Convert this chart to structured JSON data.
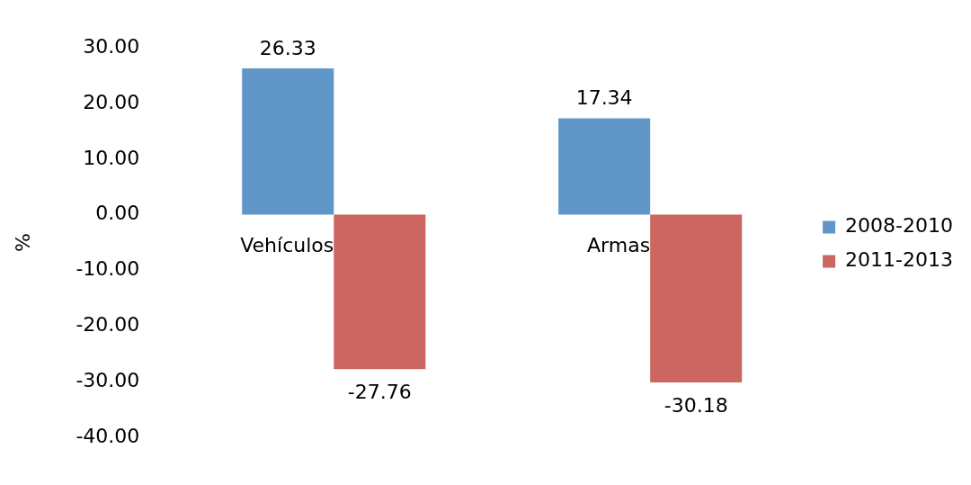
{
  "chart_data": {
    "type": "bar",
    "categories": [
      "Vehículos",
      "Armas"
    ],
    "series": [
      {
        "name": "2008-2010",
        "color": "#6096c8",
        "values": [
          26.33,
          17.34
        ]
      },
      {
        "name": "2011-2013",
        "color": "#cc6660",
        "values": [
          -27.76,
          -30.18
        ]
      }
    ],
    "ylabel": "%",
    "ylim": [
      -40,
      30
    ],
    "yticks": [
      {
        "value": -40,
        "label": "-40.00"
      },
      {
        "value": -30,
        "label": "-30.00"
      },
      {
        "value": -20,
        "label": "-20.00"
      },
      {
        "value": -10,
        "label": "-10.00"
      },
      {
        "value": 0,
        "label": "0.00"
      },
      {
        "value": 10,
        "label": "10.00"
      },
      {
        "value": 20,
        "label": "20.00"
      },
      {
        "value": 30,
        "label": "30.00"
      }
    ],
    "legend": "right",
    "data_labels": true
  }
}
